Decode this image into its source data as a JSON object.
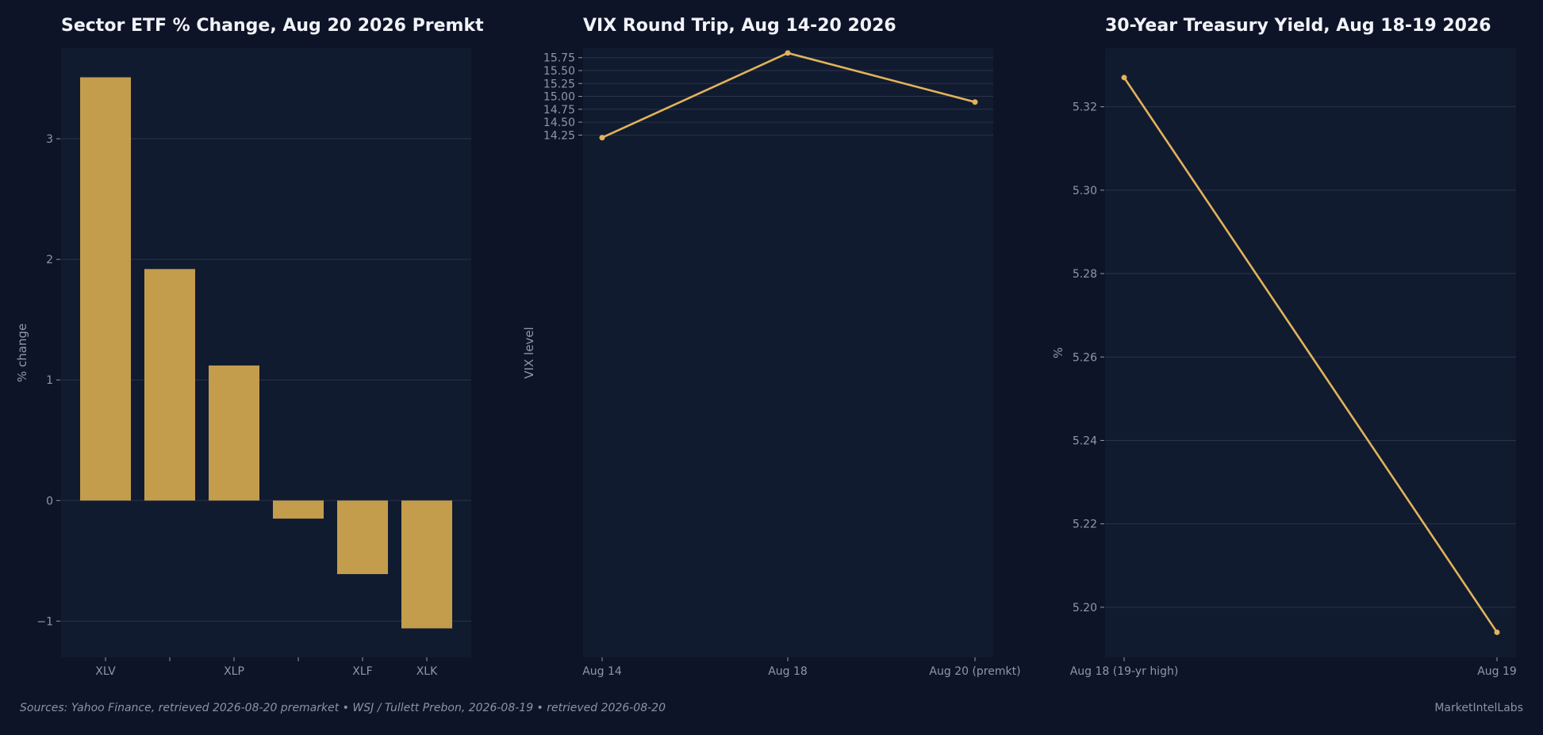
{
  "chart_data": [
    {
      "type": "bar",
      "title": "Sector ETF % Change, Aug 20 2026 Premkt",
      "ylabel": "% change",
      "xlabel": "",
      "categories": [
        "XLV",
        "",
        "XLP",
        "",
        "XLF",
        "XLK"
      ],
      "values": [
        3.51,
        1.92,
        1.12,
        -0.15,
        -0.61,
        -1.06
      ],
      "ylim": [
        -1.3,
        3.75
      ],
      "yticks": [
        -1,
        0,
        1,
        2,
        3
      ],
      "ytick_labels": [
        "−1",
        "0",
        "1",
        "2",
        "3"
      ],
      "bar_color": "#c39d4c",
      "grid": true
    },
    {
      "type": "line",
      "title": "VIX Round Trip, Aug 14-20 2026",
      "ylabel": "VIX level",
      "xlabel": "",
      "categories": [
        "Aug 14",
        "Aug 18",
        "Aug 20 (premkt)"
      ],
      "values": [
        14.2,
        15.84,
        14.89
      ],
      "ylim": [
        4.13,
        15.93
      ],
      "yticks": [
        14.25,
        14.5,
        14.75,
        15.0,
        15.25,
        15.5,
        15.75
      ],
      "ytick_labels": [
        "14.25",
        "14.50",
        "14.75",
        "15.00",
        "15.25",
        "15.50",
        "15.75"
      ],
      "line_color": "#e1b35a",
      "grid": true
    },
    {
      "type": "line",
      "title": "30-Year Treasury Yield, Aug 18-19 2026",
      "ylabel": "%",
      "xlabel": "",
      "categories": [
        "Aug 18 (19-yr high)",
        "Aug 19"
      ],
      "values": [
        5.327,
        5.194
      ],
      "ylim": [
        5.188,
        5.334
      ],
      "yticks": [
        5.2,
        5.22,
        5.24,
        5.26,
        5.28,
        5.3,
        5.32
      ],
      "ytick_labels": [
        "5.20",
        "5.22",
        "5.24",
        "5.26",
        "5.28",
        "5.30",
        "5.32"
      ],
      "line_color": "#e1b35a",
      "grid": true
    }
  ],
  "footer": {
    "sources": "Sources: Yahoo Finance, retrieved 2026-08-20 premarket  •  WSJ / Tullett Prebon, 2026-08-19  •  retrieved 2026-08-20",
    "brand": "MarketIntelLabs"
  },
  "colors": {
    "background": "#0e1428",
    "plot_background": "#111b30",
    "gridline": "#2a3348",
    "accent": "#c39d4c"
  }
}
